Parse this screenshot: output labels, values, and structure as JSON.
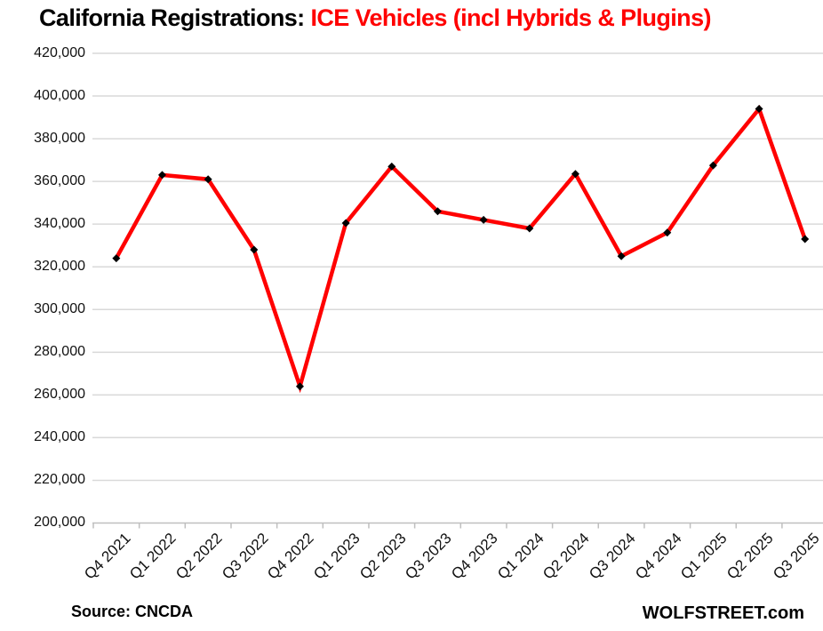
{
  "title": {
    "black": "California Registrations: ",
    "red": "ICE Vehicles (incl Hybrids & Plugins)"
  },
  "footer": {
    "source": "Source: CNCDA",
    "brand": "WOLFSTREET.com"
  },
  "colors": {
    "line": "#FF0000",
    "marker": "#000000",
    "title_accent": "#FF0000",
    "gridline": "#D9D9D9",
    "axis": "#BFBFBF",
    "label_text": "#111111"
  },
  "chart_data": {
    "type": "line",
    "title": "California Registrations: ICE Vehicles (incl Hybrids & Plugins)",
    "categories": [
      "Q4 2021",
      "Q1 2022",
      "Q2 2022",
      "Q3 2022",
      "Q4 2022",
      "Q1 2023",
      "Q2 2023",
      "Q3 2023",
      "Q4 2023",
      "Q1 2024",
      "Q2 2024",
      "Q3 2024",
      "Q4 2024",
      "Q1 2025",
      "Q2 2025",
      "Q3 2025"
    ],
    "values": [
      324000,
      363000,
      361000,
      328000,
      264000,
      340500,
      367000,
      346000,
      342000,
      338000,
      363500,
      325000,
      336000,
      367500,
      394000,
      333000
    ],
    "series_name": "ICE vehicle registrations (incl hybrids & plugins)",
    "xlabel": "",
    "ylabel": "",
    "ylim": [
      200000,
      420000
    ],
    "ytick_step": 20000,
    "ytick_labels": [
      "420,000",
      "400,000",
      "380,000",
      "360,000",
      "340,000",
      "320,000",
      "300,000",
      "280,000",
      "260,000",
      "240,000",
      "220,000",
      "200,000"
    ],
    "grid": true,
    "legend": false,
    "marker": "diamond",
    "line_color": "#FF0000",
    "source": "CNCDA"
  }
}
